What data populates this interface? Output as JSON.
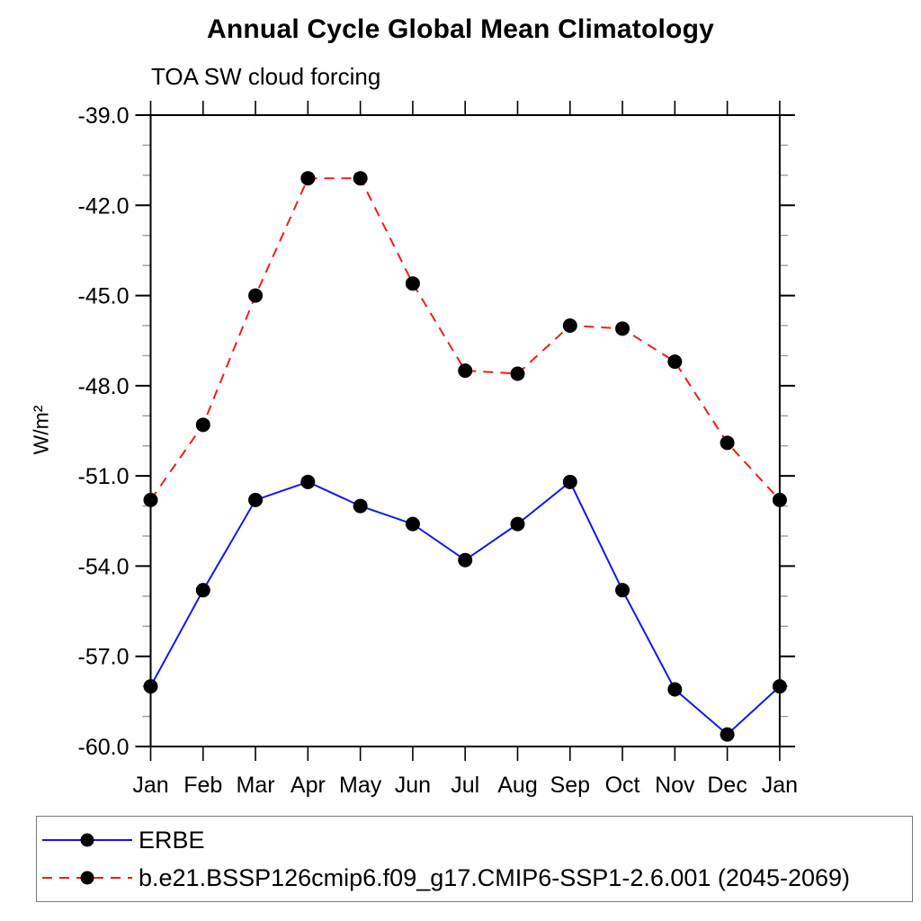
{
  "chart_data": {
    "type": "line",
    "title": "Annual Cycle Global Mean Climatology",
    "subtitle": "TOA SW cloud forcing",
    "ylabel": "W/m²",
    "xlabel": "",
    "categories": [
      "Jan",
      "Feb",
      "Mar",
      "Apr",
      "May",
      "Jun",
      "Jul",
      "Aug",
      "Sep",
      "Oct",
      "Nov",
      "Dec",
      "Jan"
    ],
    "ylim": [
      -60.0,
      -39.0
    ],
    "ytick_values": [
      -39.0,
      -42.0,
      -45.0,
      -48.0,
      -51.0,
      -54.0,
      -57.0,
      -60.0
    ],
    "ytick_labels": [
      "-39.0",
      "-42.0",
      "-45.0",
      "-48.0",
      "-51.0",
      "-54.0",
      "-57.0",
      "-60.0"
    ],
    "yminor_step": 1.0,
    "grid": false,
    "legend_position": "bottom-left-box",
    "axis_color": "#000000",
    "minor_tick_color": "#999999",
    "series": [
      {
        "name": "ERBE",
        "line_color": "#1414f0",
        "line_style": "solid",
        "marker": "filled-circle",
        "marker_color": "#000000",
        "values": [
          -58.0,
          -54.8,
          -51.8,
          -51.2,
          -52.0,
          -52.6,
          -53.8,
          -52.6,
          -51.2,
          -54.8,
          -58.1,
          -59.6,
          -58.0
        ]
      },
      {
        "name": "b.e21.BSSP126cmip6.f09_g17.CMIP6-SSP1-2.6.001 (2045-2069)",
        "line_color": "#f21b1b",
        "line_style": "dashed",
        "marker": "filled-circle",
        "marker_color": "#000000",
        "values": [
          -51.8,
          -49.3,
          -45.0,
          -41.1,
          -41.1,
          -44.6,
          -47.5,
          -47.6,
          -46.0,
          -46.1,
          -47.2,
          -49.9,
          -51.8
        ]
      }
    ]
  }
}
